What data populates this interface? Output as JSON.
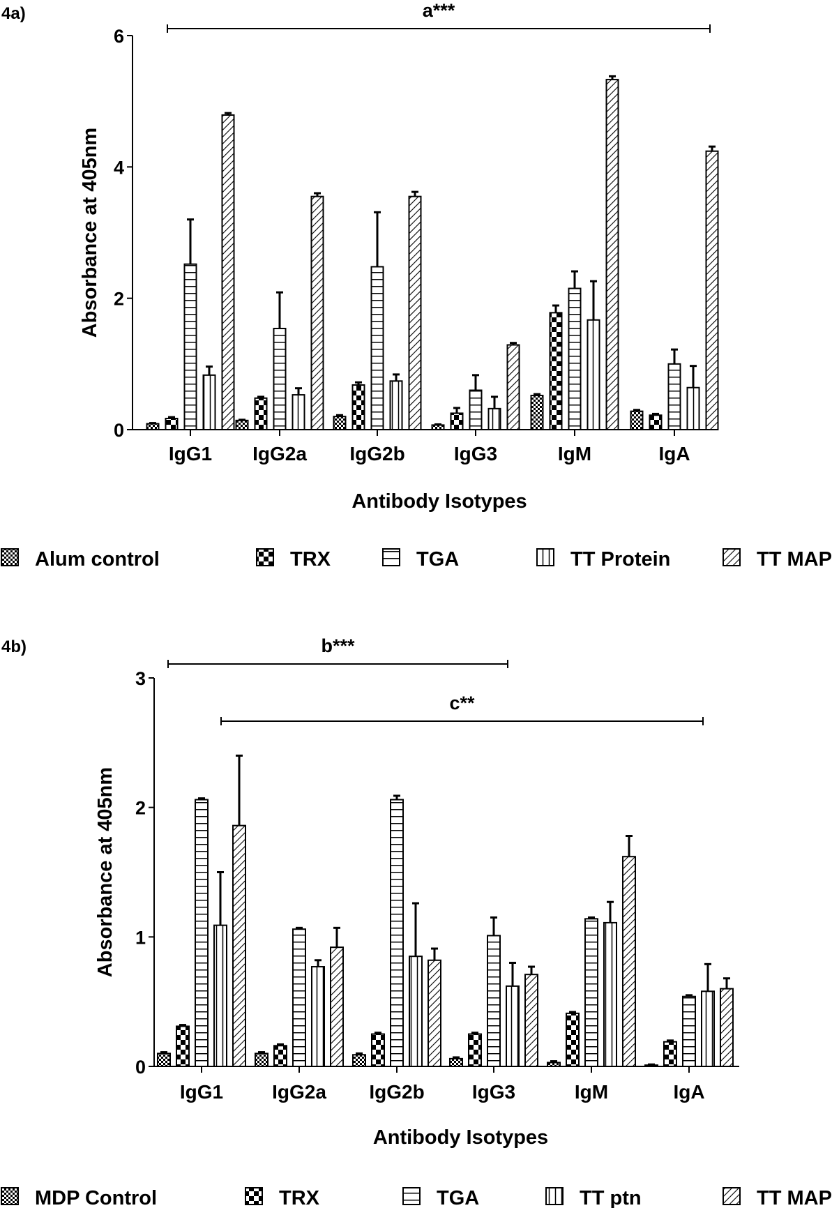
{
  "chart_data": [
    {
      "type": "bar",
      "panel_label": "4a)",
      "title": "",
      "xlabel": "Antibody Isotypes",
      "ylabel": "Absorbance at 405nm",
      "ylim": [
        0,
        6
      ],
      "yticks": [
        "0",
        "2",
        "4",
        "6"
      ],
      "ytick_values": [
        0,
        2,
        4,
        6
      ],
      "grid": false,
      "legend_position": "bottom",
      "categories": [
        "IgG1",
        "IgG2a",
        "IgG2b",
        "IgG3",
        "IgM",
        "IgA"
      ],
      "series": [
        {
          "name": "Alum control",
          "pattern": "fine-checker",
          "values": [
            0.09,
            0.14,
            0.2,
            0.07,
            0.52,
            0.28
          ],
          "error_upper": [
            0.1,
            0.15,
            0.22,
            0.08,
            0.54,
            0.3
          ]
        },
        {
          "name": "TRX",
          "pattern": "coarse-checker",
          "values": [
            0.17,
            0.48,
            0.68,
            0.25,
            1.78,
            0.22
          ],
          "error_upper": [
            0.19,
            0.5,
            0.72,
            0.33,
            1.89,
            0.24
          ]
        },
        {
          "name": "TGA",
          "pattern": "horizontal-lines",
          "values": [
            2.52,
            1.54,
            2.48,
            0.6,
            2.15,
            1.0
          ],
          "error_upper": [
            3.2,
            2.09,
            3.31,
            0.83,
            2.41,
            1.22
          ]
        },
        {
          "name": "TT Protein",
          "pattern": "vertical-lines",
          "values": [
            0.83,
            0.53,
            0.74,
            0.32,
            1.67,
            0.64
          ],
          "error_upper": [
            0.96,
            0.63,
            0.84,
            0.5,
            2.26,
            0.97
          ]
        },
        {
          "name": "TT MAP",
          "pattern": "diagonal-lines",
          "values": [
            4.79,
            3.55,
            3.55,
            1.29,
            5.33,
            4.24
          ],
          "error_upper": [
            4.82,
            3.6,
            3.62,
            1.32,
            5.38,
            4.31
          ]
        }
      ],
      "annotations": [
        {
          "text": "a***",
          "from_category": "IgG1",
          "to_category": "IgA"
        }
      ]
    },
    {
      "type": "bar",
      "panel_label": "4b)",
      "title": "",
      "xlabel": "Antibody Isotypes",
      "ylabel": "Absorbance at 405nm",
      "ylim": [
        0,
        3
      ],
      "yticks": [
        "0",
        "1",
        "2",
        "3"
      ],
      "ytick_values": [
        0,
        1,
        2,
        3
      ],
      "grid": false,
      "legend_position": "bottom",
      "categories": [
        "IgG1",
        "IgG2a",
        "IgG2b",
        "IgG3",
        "IgM",
        "IgA"
      ],
      "series": [
        {
          "name": "MDP Control",
          "pattern": "fine-checker",
          "values": [
            0.1,
            0.1,
            0.09,
            0.06,
            0.03,
            0.01
          ],
          "error_upper": [
            0.11,
            0.11,
            0.1,
            0.07,
            0.04,
            0.015
          ]
        },
        {
          "name": "TRX",
          "pattern": "coarse-checker",
          "values": [
            0.31,
            0.16,
            0.25,
            0.25,
            0.41,
            0.19
          ],
          "error_upper": [
            0.32,
            0.17,
            0.26,
            0.26,
            0.42,
            0.2
          ]
        },
        {
          "name": "TGA",
          "pattern": "horizontal-lines",
          "values": [
            2.06,
            1.06,
            2.06,
            1.01,
            1.14,
            0.54
          ],
          "error_upper": [
            2.07,
            1.07,
            2.09,
            1.15,
            1.15,
            0.55
          ]
        },
        {
          "name": "TT ptn",
          "pattern": "vertical-lines",
          "values": [
            1.09,
            0.77,
            0.85,
            0.62,
            1.11,
            0.58
          ],
          "error_upper": [
            1.5,
            0.82,
            1.26,
            0.8,
            1.27,
            0.79
          ]
        },
        {
          "name": "TT MAP",
          "pattern": "diagonal-lines",
          "values": [
            1.86,
            0.92,
            0.82,
            0.71,
            1.62,
            0.6
          ],
          "error_upper": [
            2.4,
            1.07,
            0.91,
            0.77,
            1.78,
            0.68
          ]
        }
      ],
      "annotations": [
        {
          "text": "b***",
          "from_category": "IgG1",
          "to_category": "IgG3"
        },
        {
          "text": "c**",
          "from_category": "IgG1-TGA",
          "to_category": "IgA"
        }
      ]
    }
  ]
}
